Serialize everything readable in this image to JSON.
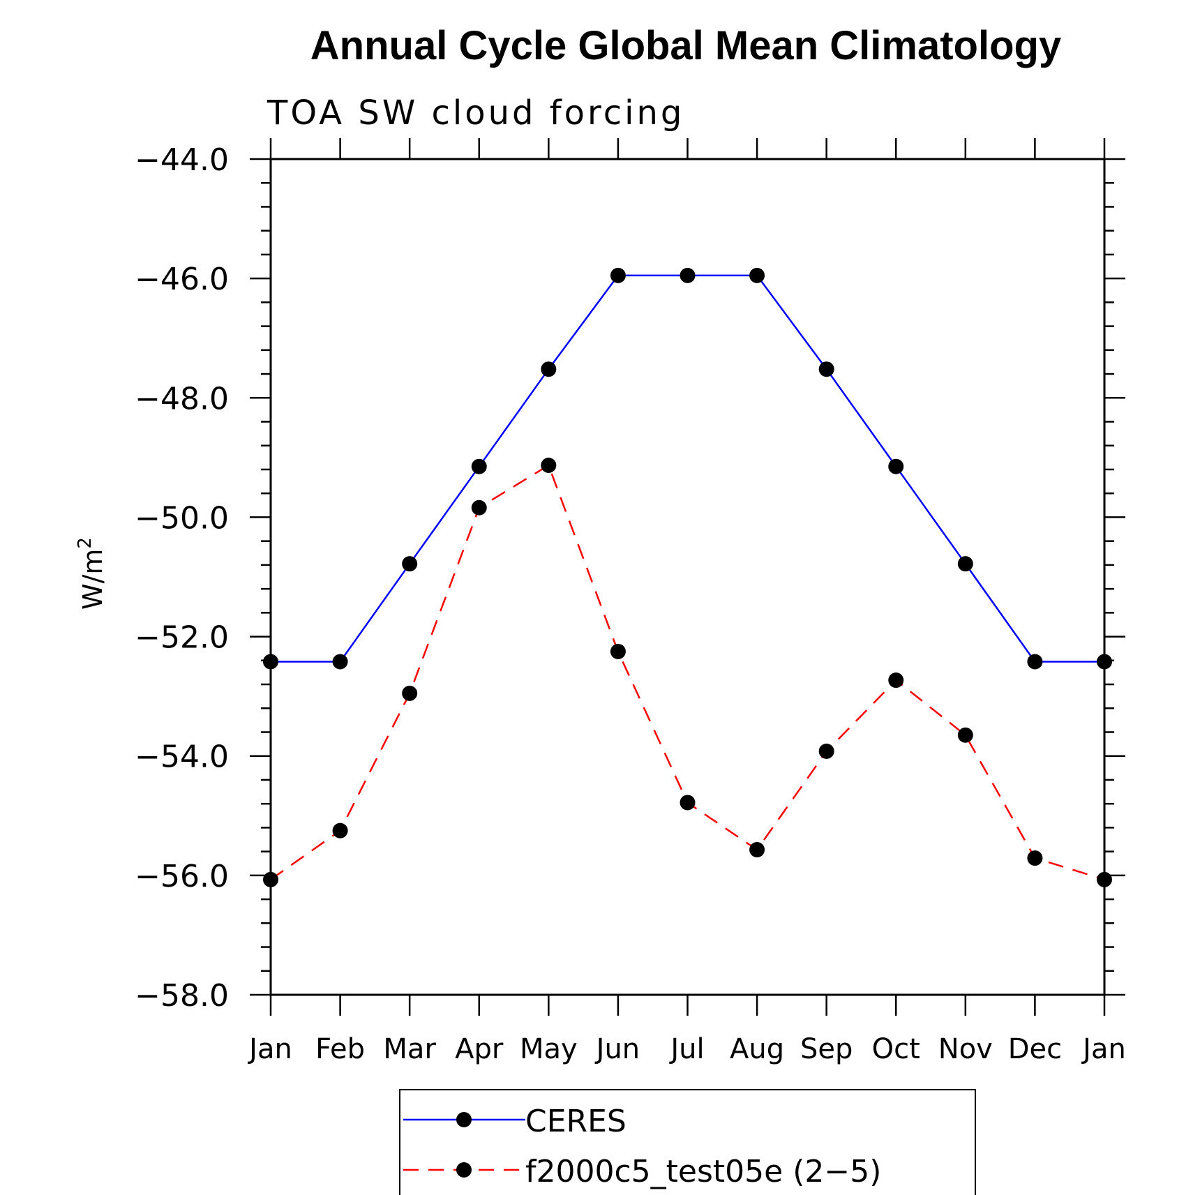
{
  "chart_data": {
    "type": "line",
    "title": "Annual Cycle Global Mean Climatology",
    "subtitle": "TOA SW cloud forcing",
    "ylabel_main": "W/m",
    "ylabel_sup": "2",
    "xlabel": "",
    "categories": [
      "Jan",
      "Feb",
      "Mar",
      "Apr",
      "May",
      "Jun",
      "Jul",
      "Aug",
      "Sep",
      "Oct",
      "Nov",
      "Dec",
      "Jan"
    ],
    "ylim": [
      -58.0,
      -44.0
    ],
    "yticks": [
      -44.0,
      -46.0,
      -48.0,
      -50.0,
      -52.0,
      -54.0,
      -56.0,
      -58.0
    ],
    "ytick_labels": [
      "−44.0",
      "−46.0",
      "−48.0",
      "−50.0",
      "−52.0",
      "−54.0",
      "−56.0",
      "−58.0"
    ],
    "series": [
      {
        "name": "CERES",
        "color": "#0000ff",
        "dash": "solid",
        "values": [
          -52.42,
          -52.42,
          -50.78,
          -49.15,
          -47.52,
          -45.95,
          -45.95,
          -45.95,
          -47.52,
          -49.15,
          -50.78,
          -52.42,
          -52.42
        ]
      },
      {
        "name": "f2000c5_test05e (2−5)",
        "color": "#ff0000",
        "dash": "dashed",
        "values": [
          -56.07,
          -55.25,
          -52.95,
          -49.84,
          -49.13,
          -52.25,
          -54.78,
          -55.57,
          -53.92,
          -52.73,
          -53.65,
          -55.71,
          -56.07
        ]
      }
    ],
    "grid": false,
    "legend_position": "bottom-center"
  }
}
